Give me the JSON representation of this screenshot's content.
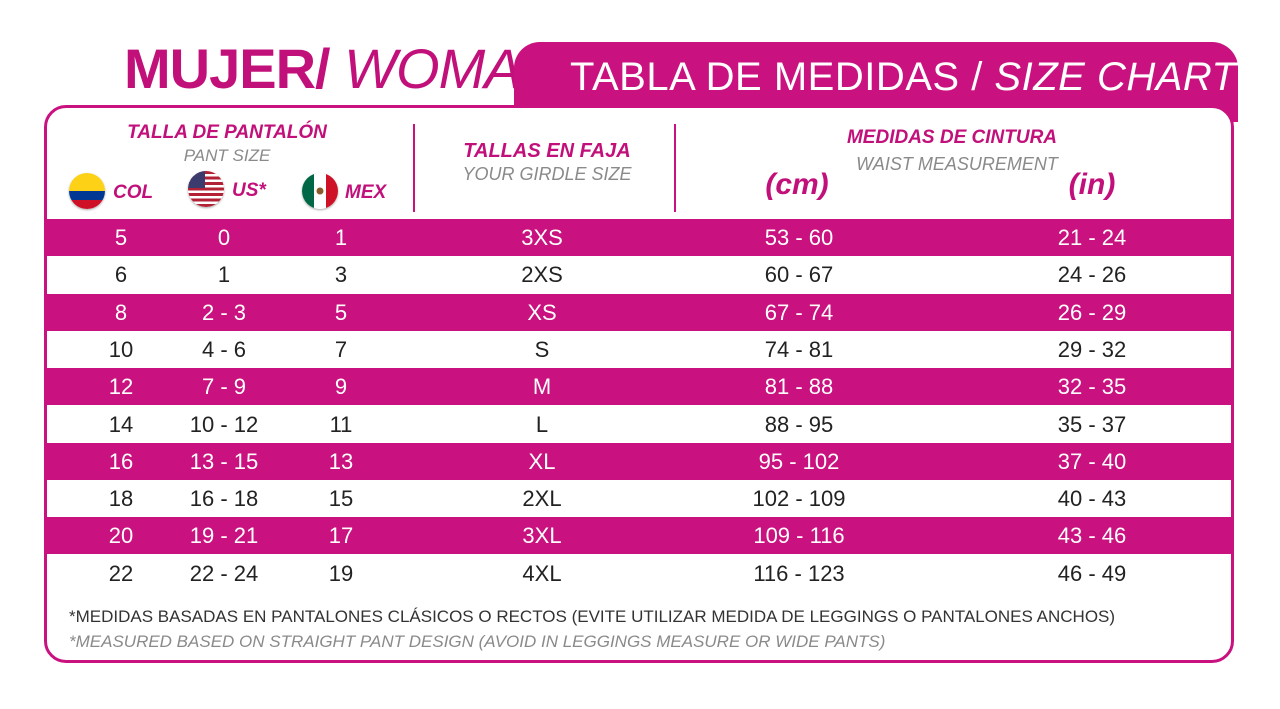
{
  "title": {
    "bold": "MUJER/",
    "light": "WOMAN"
  },
  "banner": {
    "regular": "TABLA DE MEDIDAS / ",
    "italic": "SIZE CHART"
  },
  "headers": {
    "pant_size_es": "TALLA DE PANTALÓN",
    "pant_size_en": "PANT SIZE",
    "col": "COL",
    "us": "US*",
    "mex": "MEX",
    "girdle_es": "TALLAS EN FAJA",
    "girdle_en": "YOUR GIRDLE SIZE",
    "waist_es": "MEDIDAS DE CINTURA",
    "waist_en": "WAIST MEASUREMENT",
    "cm": "(cm)",
    "in": "(in)"
  },
  "flags": [
    "colombia-flag-icon",
    "usa-flag-icon",
    "mexico-flag-icon"
  ],
  "colors": {
    "accent": "#c9127f",
    "title": "#c2107a",
    "subtitle": "#8a8a8a"
  },
  "rows": [
    {
      "col": "5",
      "us": "0",
      "mex": "1",
      "girdle": "3XS",
      "cm": "53 - 60",
      "in": "21 - 24"
    },
    {
      "col": "6",
      "us": "1",
      "mex": "3",
      "girdle": "2XS",
      "cm": "60 - 67",
      "in": "24 - 26"
    },
    {
      "col": "8",
      "us": "2 - 3",
      "mex": "5",
      "girdle": "XS",
      "cm": "67 - 74",
      "in": "26 - 29"
    },
    {
      "col": "10",
      "us": "4 - 6",
      "mex": "7",
      "girdle": "S",
      "cm": "74 - 81",
      "in": "29 - 32"
    },
    {
      "col": "12",
      "us": "7 - 9",
      "mex": "9",
      "girdle": "M",
      "cm": "81 - 88",
      "in": "32 - 35"
    },
    {
      "col": "14",
      "us": "10 - 12",
      "mex": "11",
      "girdle": "L",
      "cm": "88 - 95",
      "in": "35 - 37"
    },
    {
      "col": "16",
      "us": "13 - 15",
      "mex": "13",
      "girdle": "XL",
      "cm": "95 - 102",
      "in": "37 - 40"
    },
    {
      "col": "18",
      "us": "16 - 18",
      "mex": "15",
      "girdle": "2XL",
      "cm": "102 - 109",
      "in": "40 - 43"
    },
    {
      "col": "20",
      "us": "19 - 21",
      "mex": "17",
      "girdle": "3XL",
      "cm": "109 - 116",
      "in": "43 - 46"
    },
    {
      "col": "22",
      "us": "22 - 24",
      "mex": "19",
      "girdle": "4XL",
      "cm": "116 - 123",
      "in": "46 - 49"
    }
  ],
  "footnotes": {
    "es": "*MEDIDAS BASADAS EN PANTALONES CLÁSICOS O RECTOS (EVITE UTILIZAR MEDIDA DE LEGGINGS O PANTALONES ANCHOS)",
    "en": "*MEASURED BASED ON STRAIGHT PANT DESIGN (AVOID IN LEGGINGS MEASURE OR WIDE PANTS)"
  }
}
